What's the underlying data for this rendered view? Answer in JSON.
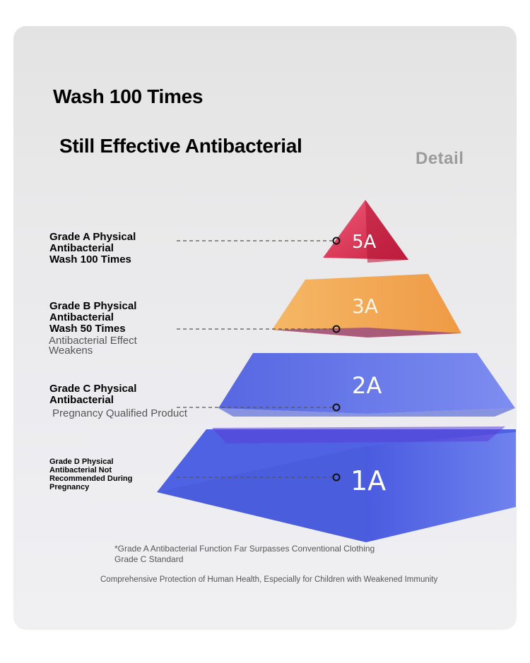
{
  "headline": {
    "line1": "Wash 100 Times",
    "line2": "Still Effective Antibacterial",
    "detail": "Detail"
  },
  "tiers": [
    {
      "grade": "5A",
      "label_lines": [
        "Grade A Physical",
        "Antibacterial",
        "Wash 100 Times"
      ],
      "color": "#e23a5c"
    },
    {
      "grade": "3A",
      "label_lines": [
        "Grade B Physical",
        "Antibacterial",
        "Wash 50 Times"
      ],
      "sub_lines": [
        "Antibacterial Effect",
        "Weakens"
      ],
      "color": "#f3a54e"
    },
    {
      "grade": "2A",
      "label_lines": [
        "Grade C Physical",
        "Antibacterial"
      ],
      "sub_lines": [
        "Pregnancy Qualified Product"
      ],
      "color": "#5a6ee6"
    },
    {
      "grade": "1A",
      "label_lines": [
        "Grade D Physical",
        "Antibacterial Not",
        "Recommended During",
        "Pregnancy"
      ],
      "color": "#4a5fe0"
    }
  ],
  "notes": {
    "line1": "*Grade A Antibacterial Function Far Surpasses Conventional Clothing",
    "line2": "Grade C Standard",
    "footer": "Comprehensive Protection of Human Health, Especially for Children with Weakened Immunity"
  }
}
